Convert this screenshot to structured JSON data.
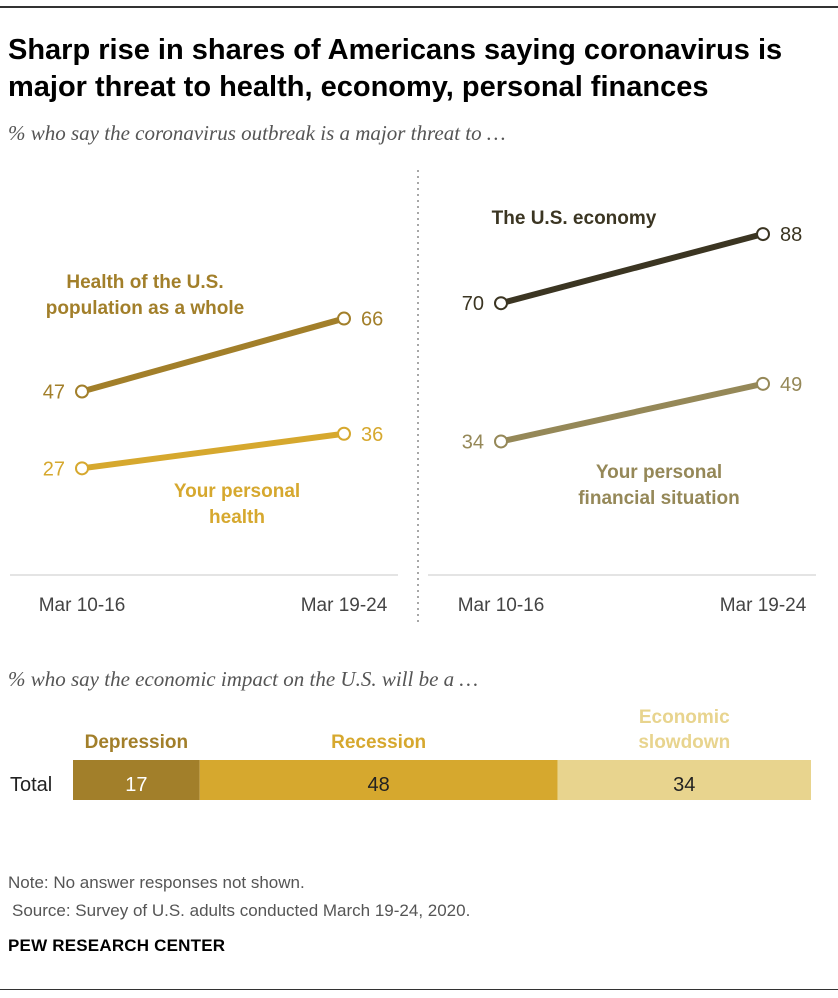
{
  "title": "Sharp rise in shares of Americans saying coronavirus is major threat to health, economy, personal finances",
  "subtitle": "% who say the coronavirus outbreak is a major threat to …",
  "subtitle2": "% who say the economic impact on the U.S. will be a …",
  "note": "Note: No answer responses not shown.",
  "source": "Source: Survey of U.S. adults conducted March 19-24, 2020.",
  "brand": "PEW RESEARCH CENTER",
  "colors": {
    "health_population": "#A27F2A",
    "personal_health": "#D6A82E",
    "us_economy": "#3B3522",
    "personal_finance": "#958858",
    "depression": "#A27F2A",
    "recession": "#D6A82E",
    "slowdown": "#E8D48E"
  },
  "chart_data": [
    {
      "type": "line",
      "x": [
        "Mar 10-16",
        "Mar 19-24"
      ],
      "series": [
        {
          "name": "Health of the U.S. population as a whole",
          "label_lines": [
            "Health of the U.S.",
            "population as a whole"
          ],
          "values": [
            47,
            66
          ],
          "color": "#A27F2A"
        },
        {
          "name": "Your personal health",
          "label_lines": [
            "Your personal",
            "health"
          ],
          "values": [
            27,
            36
          ],
          "color": "#D6A82E"
        }
      ]
    },
    {
      "type": "line",
      "x": [
        "Mar 10-16",
        "Mar 19-24"
      ],
      "series": [
        {
          "name": "The U.S. economy",
          "label_lines": [
            "The U.S. economy"
          ],
          "values": [
            70,
            88
          ],
          "color": "#3B3522"
        },
        {
          "name": "Your personal financial situation",
          "label_lines": [
            "Your personal",
            "financial situation"
          ],
          "values": [
            34,
            49
          ],
          "color": "#958858"
        }
      ]
    },
    {
      "type": "bar",
      "orientation": "horizontal",
      "stacked": true,
      "categories": [
        "Total"
      ],
      "series": [
        {
          "name": "Depression",
          "label_lines": [
            "Depression"
          ],
          "values": [
            17
          ],
          "color": "#A27F2A"
        },
        {
          "name": "Recession",
          "label_lines": [
            "Recession"
          ],
          "values": [
            48
          ],
          "color": "#D6A82E"
        },
        {
          "name": "Economic slowdown",
          "label_lines": [
            "Economic",
            "slowdown"
          ],
          "values": [
            34
          ],
          "color": "#E8D48E"
        }
      ]
    }
  ]
}
